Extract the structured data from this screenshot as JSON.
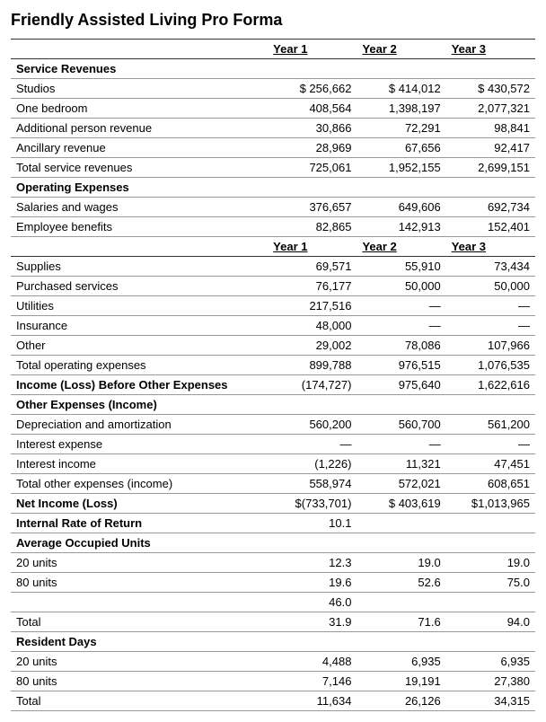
{
  "title": "Friendly Assisted Living Pro Forma",
  "columns": [
    "Year 1",
    "Year 2",
    "Year 3"
  ],
  "rows": [
    {
      "type": "header"
    },
    {
      "type": "section",
      "label": "Service Revenues"
    },
    {
      "type": "data",
      "label": "Studios",
      "y1": "$ 256,662",
      "y2": "$ 414,012",
      "y3": "$ 430,572"
    },
    {
      "type": "data",
      "label": "One bedroom",
      "y1": "408,564",
      "y2": "1,398,197",
      "y3": "2,077,321"
    },
    {
      "type": "data",
      "label": "Additional person revenue",
      "y1": "30,866",
      "y2": "72,291",
      "y3": "98,841"
    },
    {
      "type": "data",
      "label": "Ancillary revenue",
      "y1": "28,969",
      "y2": "67,656",
      "y3": "92,417"
    },
    {
      "type": "data",
      "label": "Total service revenues",
      "y1": "725,061",
      "y2": "1,952,155",
      "y3": "2,699,151"
    },
    {
      "type": "section-nohdr",
      "label": "Operating Expenses"
    },
    {
      "type": "data",
      "label": "Salaries and wages",
      "y1": "376,657",
      "y2": "649,606",
      "y3": "692,734"
    },
    {
      "type": "data",
      "label": "Employee benefits",
      "y1": "82,865",
      "y2": "142,913",
      "y3": "152,401"
    },
    {
      "type": "header"
    },
    {
      "type": "data",
      "label": "Supplies",
      "y1": "69,571",
      "y2": "55,910",
      "y3": "73,434"
    },
    {
      "type": "data",
      "label": "Purchased services",
      "y1": "76,177",
      "y2": "50,000",
      "y3": "50,000"
    },
    {
      "type": "data",
      "label": "Utilities",
      "y1": "217,516",
      "y2": "—",
      "y3": "—"
    },
    {
      "type": "data",
      "label": "Insurance",
      "y1": "48,000",
      "y2": "—",
      "y3": "—"
    },
    {
      "type": "data",
      "label": "Other",
      "y1": "29,002",
      "y2": "78,086",
      "y3": "107,966"
    },
    {
      "type": "data",
      "label": "Total operating expenses",
      "y1": "899,788",
      "y2": "976,515",
      "y3": "1,076,535"
    },
    {
      "type": "bold",
      "label": "Income (Loss) Before Other Expenses",
      "y1": "(174,727)",
      "y2": "975,640",
      "y3": "1,622,616"
    },
    {
      "type": "section-nohdr",
      "label": "Other Expenses (Income)"
    },
    {
      "type": "data",
      "label": "Depreciation and amortization",
      "y1": "560,200",
      "y2": "560,700",
      "y3": "561,200"
    },
    {
      "type": "data",
      "label": "Interest expense",
      "y1": "—",
      "y2": "—",
      "y3": "—"
    },
    {
      "type": "data",
      "label": "Interest income",
      "y1": "(1,226)",
      "y2": "11,321",
      "y3": "47,451"
    },
    {
      "type": "data",
      "label": "Total other expenses (income)",
      "y1": "558,974",
      "y2": "572,021",
      "y3": "608,651"
    },
    {
      "type": "bold",
      "label": "Net Income (Loss)",
      "y1": "$(733,701)",
      "y2": "$ 403,619",
      "y3": "$1,013,965"
    },
    {
      "type": "bold",
      "label": "Internal Rate of Return",
      "y1": "10.1",
      "y2": "",
      "y3": ""
    },
    {
      "type": "section-nohdr",
      "label": "Average Occupied Units"
    },
    {
      "type": "data",
      "label": "20 units",
      "y1": "12.3",
      "y2": "19.0",
      "y3": "19.0"
    },
    {
      "type": "data",
      "label": "80 units",
      "y1": "19.6",
      "y2": "52.6",
      "y3": "75.0"
    },
    {
      "type": "data",
      "label": "",
      "y1": "46.0",
      "y2": "",
      "y3": ""
    },
    {
      "type": "data",
      "label": "Total",
      "y1": "31.9",
      "y2": "71.6",
      "y3": "94.0"
    },
    {
      "type": "section-nohdr",
      "label": "Resident Days"
    },
    {
      "type": "data",
      "label": "20 units",
      "y1": "4,488",
      "y2": "6,935",
      "y3": "6,935"
    },
    {
      "type": "data",
      "label": "80 units",
      "y1": "7,146",
      "y2": "19,191",
      "y3": "27,380"
    },
    {
      "type": "data",
      "label": "Total",
      "y1": "11,634",
      "y2": "26,126",
      "y3": "34,315"
    }
  ]
}
